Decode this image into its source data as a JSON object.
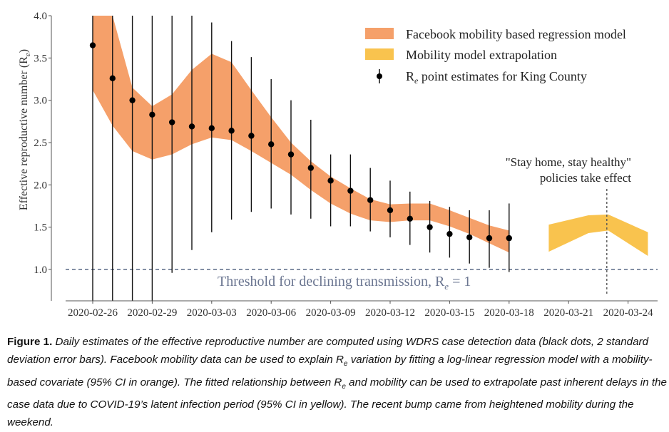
{
  "chart_data": {
    "type": "line",
    "title": "",
    "xlabel": "",
    "ylabel": "Effective reproductive number (R_e)",
    "ylabel_main": "Effective reproductive number (R",
    "ylabel_sub": "e",
    "ylim": [
      0.6,
      4.0
    ],
    "yticks": [
      1.0,
      1.5,
      2.0,
      2.5,
      3.0,
      3.5,
      4.0
    ],
    "ytick_labels": [
      "1.0",
      "1.5",
      "2.0",
      "2.5",
      "3.0",
      "3.5",
      "4.0"
    ],
    "xlim_dates": [
      "2020-02-24",
      "2020-03-25"
    ],
    "xticks": [
      "2020-02-26",
      "2020-02-29",
      "2020-03-03",
      "2020-03-06",
      "2020-03-09",
      "2020-03-12",
      "2020-03-15",
      "2020-03-18",
      "2020-03-21",
      "2020-03-24"
    ],
    "grid": false,
    "legend_position": "top-right",
    "legend": [
      {
        "label": "Facebook mobility based regression model",
        "kind": "band",
        "color": "#f5a06a"
      },
      {
        "label": "Mobility model extrapolation",
        "kind": "band",
        "color": "#f9c34e"
      },
      {
        "label_main": "R",
        "label_sub": "e",
        "label_rest": " point estimates for King County",
        "kind": "errorbar",
        "color": "#000000"
      }
    ],
    "series": [
      {
        "name": "Re point estimates for King County",
        "kind": "errorbar",
        "color": "#000000",
        "day_offsets": [
          0,
          1,
          2,
          3,
          4,
          5,
          6,
          7,
          8,
          9,
          10,
          11,
          12,
          13,
          14,
          15,
          16,
          17,
          18,
          19,
          20,
          21
        ],
        "start_date": "2020-02-26",
        "values": [
          3.65,
          3.26,
          3.0,
          2.83,
          2.74,
          2.69,
          2.67,
          2.64,
          2.58,
          2.48,
          2.36,
          2.2,
          2.05,
          1.93,
          1.82,
          1.7,
          1.6,
          1.5,
          1.42,
          1.38,
          1.37,
          1.37
        ],
        "upper": [
          4.0,
          4.0,
          4.0,
          4.0,
          4.0,
          4.0,
          3.92,
          3.7,
          3.51,
          3.25,
          3.0,
          2.77,
          2.36,
          2.36,
          2.2,
          2.05,
          1.92,
          1.81,
          1.74,
          1.7,
          1.7,
          1.78
        ],
        "lower": [
          0.6,
          0.6,
          0.6,
          0.6,
          0.96,
          1.23,
          1.44,
          1.59,
          1.68,
          1.72,
          1.65,
          1.6,
          1.51,
          1.51,
          1.45,
          1.38,
          1.29,
          1.2,
          1.14,
          1.07,
          1.02,
          0.97
        ]
      },
      {
        "name": "Facebook mobility based regression model",
        "kind": "band",
        "color": "#f5a06a",
        "start_date": "2020-02-26",
        "day_offsets": [
          0,
          1,
          2,
          3,
          4,
          5,
          6,
          7,
          8,
          9,
          10,
          11,
          12,
          13,
          14,
          15,
          16,
          17,
          18,
          19,
          20,
          21
        ],
        "upper": [
          4.0,
          4.0,
          3.15,
          2.93,
          3.07,
          3.36,
          3.55,
          3.45,
          3.12,
          2.8,
          2.5,
          2.28,
          2.1,
          1.96,
          1.83,
          1.77,
          1.78,
          1.78,
          1.7,
          1.61,
          1.52,
          1.46
        ],
        "lower": [
          3.12,
          2.7,
          2.4,
          2.3,
          2.36,
          2.48,
          2.56,
          2.53,
          2.4,
          2.26,
          2.12,
          1.94,
          1.78,
          1.66,
          1.58,
          1.56,
          1.58,
          1.58,
          1.51,
          1.42,
          1.31,
          1.2
        ]
      },
      {
        "name": "Mobility model extrapolation",
        "kind": "band",
        "color": "#f9c34e",
        "start_date": "2020-03-20",
        "day_offsets": [
          0,
          2,
          3,
          5
        ],
        "upper": [
          1.53,
          1.64,
          1.65,
          1.44
        ],
        "lower": [
          1.21,
          1.43,
          1.46,
          1.16
        ]
      }
    ],
    "reference_lines": [
      {
        "kind": "horizontal",
        "y": 1.0,
        "style": "dashed",
        "color": "#5a6a85",
        "label_main": "Threshold for declining transmission, R",
        "label_sub": "e",
        "label_rest": " = 1"
      },
      {
        "kind": "vertical",
        "date": "2020-03-23",
        "style": "dotted",
        "color": "#555555"
      }
    ],
    "annotations": [
      {
        "lines": [
          "\"Stay home, stay healthy\"",
          "policies take effect"
        ],
        "anchor_date": "2020-03-23"
      }
    ]
  },
  "caption": {
    "label": "Figure 1.",
    "text_1": " Daily estimates of the effective reproductive number are computed using WDRS case detection data (black dots, 2 standard deviation error bars). Facebook mobility data can be used to explain ",
    "re_main": "R",
    "re_sub": "e",
    "text_2": " variation by fitting a log-linear regression model with a mobility-based covariate (95% CI in orange). The fitted relationship between ",
    "text_3": " and mobility can be used to extrapolate past inherent delays in the case data due to COVID-19’s latent infection period (95% CI in yellow). The recent bump came from heightened mobility during the weekend."
  }
}
